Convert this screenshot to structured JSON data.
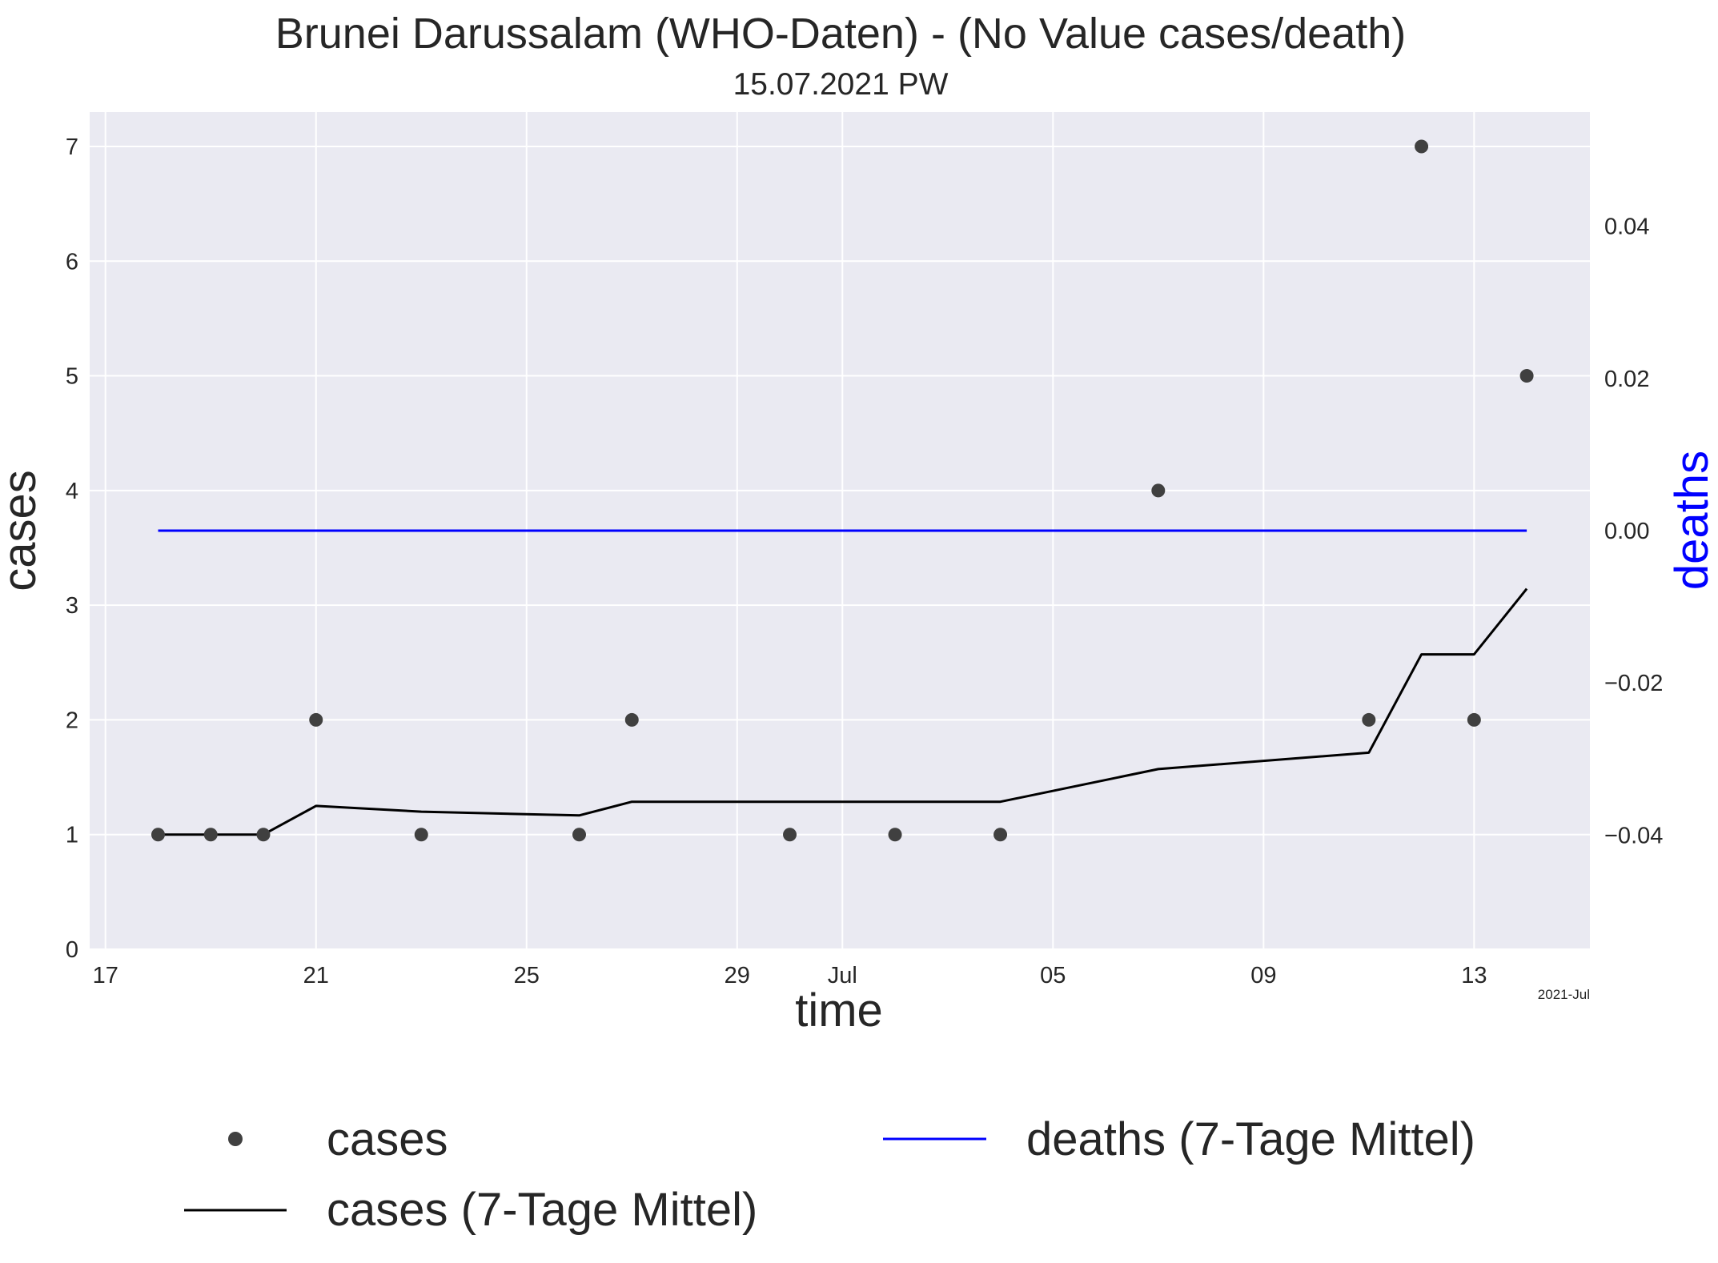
{
  "chart_data": {
    "type": "line",
    "title": "Brunei Darussalam (WHO-Daten) - (No Value cases/death)",
    "subtitle": "15.07.2021 PW",
    "xlabel": "time",
    "ylabel": "cases",
    "y2label": "deaths",
    "x_offset_label": "2021-Jul",
    "x_ticks": [
      {
        "date": "2021-06-17",
        "label": "17"
      },
      {
        "date": "2021-06-21",
        "label": "21"
      },
      {
        "date": "2021-06-25",
        "label": "25"
      },
      {
        "date": "2021-06-29",
        "label": "29"
      },
      {
        "date": "2021-07-01",
        "label": "Jul"
      },
      {
        "date": "2021-07-05",
        "label": "05"
      },
      {
        "date": "2021-07-09",
        "label": "09"
      },
      {
        "date": "2021-07-13",
        "label": "13"
      }
    ],
    "xlim": [
      "2021-06-16.7",
      "2021-07-15.2"
    ],
    "ylim": [
      0,
      7.3
    ],
    "y_ticks": [
      0,
      1,
      2,
      3,
      4,
      5,
      6,
      7
    ],
    "y2lim": [
      -0.055,
      0.055
    ],
    "y2_ticks": [
      {
        "value": -0.04,
        "label": "−0.04"
      },
      {
        "value": -0.02,
        "label": "−0.02"
      },
      {
        "value": 0.0,
        "label": "0.00"
      },
      {
        "value": 0.02,
        "label": "0.02"
      },
      {
        "value": 0.04,
        "label": "0.04"
      }
    ],
    "grid": true,
    "legend_position": "bottom",
    "series": [
      {
        "name": "cases",
        "style": "scatter",
        "color": "#404040",
        "axis": "left",
        "points": [
          {
            "x": "2021-06-18",
            "y": 1
          },
          {
            "x": "2021-06-19",
            "y": 1
          },
          {
            "x": "2021-06-20",
            "y": 1
          },
          {
            "x": "2021-06-21",
            "y": 2
          },
          {
            "x": "2021-06-23",
            "y": 1
          },
          {
            "x": "2021-06-26",
            "y": 1
          },
          {
            "x": "2021-06-27",
            "y": 2
          },
          {
            "x": "2021-06-30",
            "y": 1
          },
          {
            "x": "2021-07-02",
            "y": 1
          },
          {
            "x": "2021-07-04",
            "y": 1
          },
          {
            "x": "2021-07-07",
            "y": 4
          },
          {
            "x": "2021-07-11",
            "y": 2
          },
          {
            "x": "2021-07-12",
            "y": 7
          },
          {
            "x": "2021-07-13",
            "y": 2
          },
          {
            "x": "2021-07-14",
            "y": 5
          }
        ]
      },
      {
        "name": "cases (7-Tage Mittel)",
        "style": "line",
        "color": "#000000",
        "axis": "left",
        "points": [
          {
            "x": "2021-06-18",
            "y": 1.0
          },
          {
            "x": "2021-06-19",
            "y": 1.0
          },
          {
            "x": "2021-06-20",
            "y": 1.0
          },
          {
            "x": "2021-06-21",
            "y": 1.25
          },
          {
            "x": "2021-06-23",
            "y": 1.2
          },
          {
            "x": "2021-06-26",
            "y": 1.167
          },
          {
            "x": "2021-06-27",
            "y": 1.286
          },
          {
            "x": "2021-06-30",
            "y": 1.286
          },
          {
            "x": "2021-07-02",
            "y": 1.286
          },
          {
            "x": "2021-07-04",
            "y": 1.286
          },
          {
            "x": "2021-07-07",
            "y": 1.571
          },
          {
            "x": "2021-07-11",
            "y": 1.714
          },
          {
            "x": "2021-07-12",
            "y": 2.571
          },
          {
            "x": "2021-07-13",
            "y": 2.571
          },
          {
            "x": "2021-07-14",
            "y": 3.143
          }
        ]
      },
      {
        "name": "deaths (7-Tage Mittel)",
        "style": "line",
        "color": "#0000ff",
        "axis": "right",
        "points": [
          {
            "x": "2021-06-18",
            "y": 0.0
          },
          {
            "x": "2021-07-14",
            "y": 0.0
          }
        ]
      }
    ]
  }
}
